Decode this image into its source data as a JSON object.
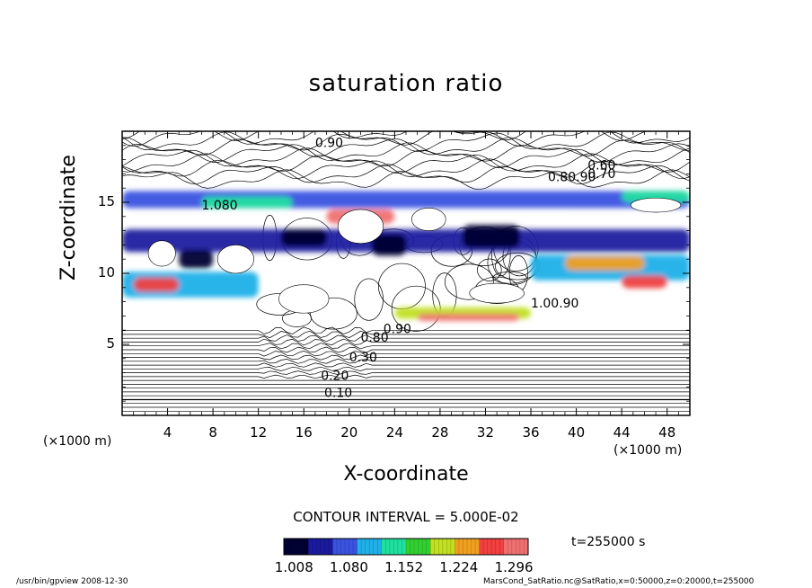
{
  "chart_data": {
    "type": "heatmap",
    "title": "saturation ratio",
    "xlabel": "X-coordinate",
    "ylabel": "Z-coordinate",
    "x_unit_label": "(×1000 m)",
    "xlim": [
      0,
      50
    ],
    "ylim": [
      0,
      20
    ],
    "x_ticks": [
      "4",
      "8",
      "12",
      "16",
      "20",
      "24",
      "28",
      "32",
      "36",
      "40",
      "44",
      "48"
    ],
    "x_tick_values": [
      4,
      8,
      12,
      16,
      20,
      24,
      28,
      32,
      36,
      40,
      44,
      48
    ],
    "y_ticks": [
      "5",
      "10",
      "15"
    ],
    "y_tick_values": [
      5,
      10,
      15
    ],
    "contour_interval_text": "CONTOUR INTERVAL = 5.000E-02",
    "time_text": "t=255000 s",
    "colorbar": {
      "tick_labels": [
        "1.008",
        "1.080",
        "1.152",
        "1.224",
        "1.296"
      ],
      "tick_values": [
        1.008,
        1.08,
        1.152,
        1.224,
        1.296
      ],
      "range": [
        1.0,
        1.32
      ],
      "colormap": [
        "#000033",
        "#1a1aa0",
        "#3a52e0",
        "#20b0e8",
        "#20e0a0",
        "#30d030",
        "#c0e020",
        "#f0a020",
        "#f04040",
        "#f07070"
      ]
    },
    "contour_labels": [
      {
        "text": "0.90",
        "x": 17,
        "y": 18.9
      },
      {
        "text": "0.60",
        "x": 41,
        "y": 17.3
      },
      {
        "text": "0.70",
        "x": 41,
        "y": 16.7
      },
      {
        "text": "0.80.90",
        "x": 37.5,
        "y": 16.5
      },
      {
        "text": "1.080",
        "x": 7,
        "y": 14.5
      },
      {
        "text": "1.00.90",
        "x": 36,
        "y": 7.6
      },
      {
        "text": "0.90",
        "x": 23,
        "y": 5.8
      },
      {
        "text": "0.80",
        "x": 21,
        "y": 5.2
      },
      {
        "text": "0.30",
        "x": 20,
        "y": 3.8
      },
      {
        "text": "0.20",
        "x": 17.5,
        "y": 2.5
      },
      {
        "text": "0.10",
        "x": 17.8,
        "y": 1.3
      }
    ],
    "footer_left": "/usr/bin/gpview   2008-12-30",
    "footer_right": "MarsCond_SatRatio.nc@SatRatio,x=0:50000,z=0:20000,t=255000"
  }
}
